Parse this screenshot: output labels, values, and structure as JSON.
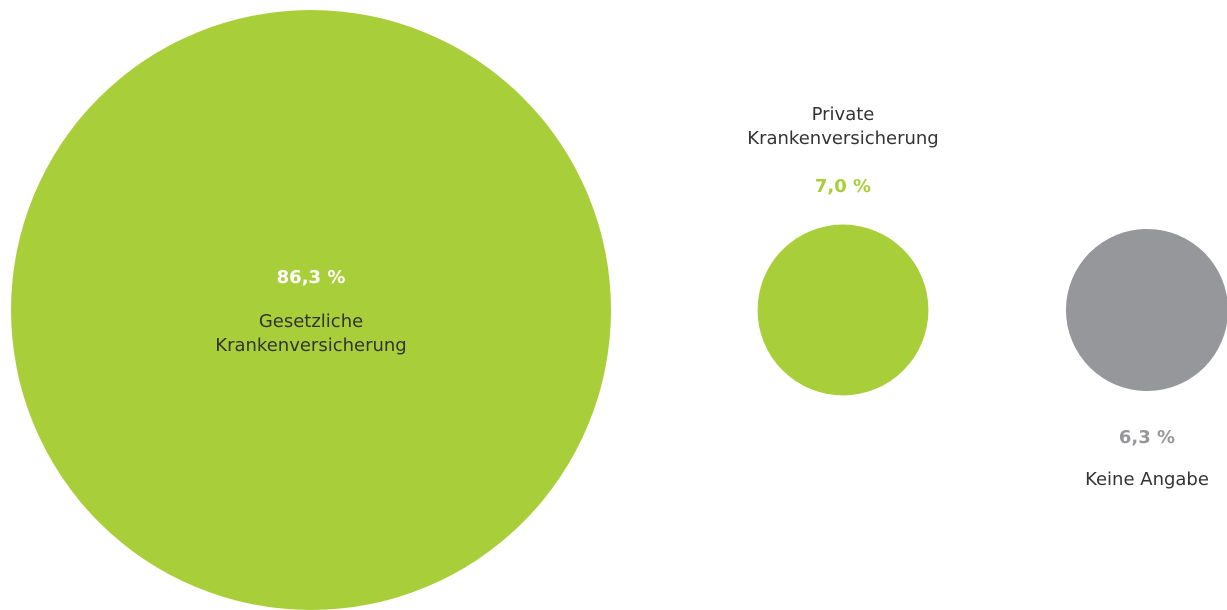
{
  "chart_data": {
    "type": "bubble",
    "categories": [
      "Gesetzliche Krankenversicherung",
      "Private Krankenversicherung",
      "Keine Angabe"
    ],
    "values": [
      86.3,
      7.0,
      6.3
    ],
    "value_labels": [
      "86,3 %",
      "7,0 %",
      "6,3 %"
    ],
    "colors": [
      "#a8cf3a",
      "#a8cf3a",
      "#96979b"
    ]
  }
}
